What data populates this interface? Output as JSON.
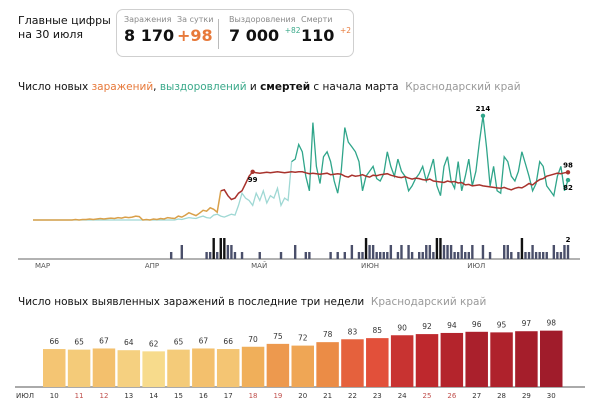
{
  "header": {
    "headline_line1": "Главные цифры",
    "headline_line2": "на 30 июля",
    "stats": {
      "cases_label": "Заражения",
      "cases_value": "8 170",
      "daily_label": "За сутки",
      "daily_value": "+98",
      "recovered_label": "Выздоровления",
      "recovered_value": "7 000",
      "recovered_delta": "+82",
      "deaths_label": "Смерти",
      "deaths_value": "110",
      "deaths_delta": "+2"
    }
  },
  "colors": {
    "cases_early": "#d9a04a",
    "cases": "#a8322c",
    "recovered_early": "#9fd8d4",
    "recovered": "#2fa58a",
    "deaths": "#4a4f6a",
    "deaths_high": "#111111",
    "accent_orange": "#e7793a",
    "accent_green": "#3aa98a"
  },
  "chart_data": [
    {
      "type": "line",
      "title_parts": {
        "a": "Число новых ",
        "cases": "заражений",
        "b": ", ",
        "recovered": "выздоровлений",
        "c": " и ",
        "deaths": "смертей",
        "d": " с начала марта",
        "region": "Краснодарский край"
      },
      "x_start": "2020-03-01",
      "x_end": "2020-07-30",
      "x_ticks": [
        "МАР",
        "АПР",
        "МАЙ",
        "ИЮН",
        "ИЮЛ"
      ],
      "annotations": {
        "cases_peak": "99",
        "recovered_peak": "214",
        "cases_last": "98",
        "recovered_last": "82",
        "deaths_last": "2"
      },
      "series": [
        {
          "key": "cases",
          "values": [
            0,
            0,
            0,
            0,
            0,
            0,
            0,
            0,
            0,
            0,
            0,
            0,
            1,
            0,
            1,
            1,
            2,
            1,
            2,
            3,
            2,
            3,
            4,
            3,
            5,
            4,
            6,
            5,
            6,
            8,
            7,
            0,
            1,
            0,
            2,
            1,
            3,
            2,
            5,
            4,
            3,
            8,
            6,
            10,
            15,
            12,
            9,
            14,
            20,
            18,
            25,
            22,
            16,
            60,
            62,
            50,
            42,
            45,
            55,
            60,
            75,
            90,
            99,
            97,
            96,
            97,
            98,
            97,
            98,
            99,
            98,
            97,
            98,
            99,
            98,
            99,
            99,
            97,
            95,
            96,
            95,
            94,
            95,
            96,
            93,
            94,
            95,
            94,
            90,
            88,
            92,
            90,
            91,
            93,
            90,
            88,
            92,
            91,
            93,
            94,
            95,
            92,
            90,
            88,
            87,
            89,
            86,
            84,
            86,
            85,
            83,
            82,
            84,
            80,
            79,
            78,
            77,
            80,
            78,
            79,
            76,
            77,
            72,
            73,
            70,
            71,
            72,
            70,
            69,
            68,
            67,
            66,
            65,
            67,
            64,
            62,
            65,
            67,
            66,
            70,
            75,
            72,
            78,
            83,
            85,
            90,
            92,
            94,
            96,
            95,
            97,
            98
          ]
        },
        {
          "key": "recovered",
          "values": [
            0,
            0,
            0,
            0,
            0,
            0,
            0,
            0,
            0,
            0,
            0,
            0,
            0,
            0,
            0,
            0,
            0,
            0,
            0,
            0,
            0,
            0,
            0,
            0,
            0,
            0,
            0,
            0,
            0,
            0,
            0,
            0,
            0,
            0,
            0,
            0,
            0,
            0,
            0,
            0,
            0,
            2,
            1,
            3,
            5,
            4,
            3,
            6,
            8,
            5,
            4,
            10,
            12,
            8,
            6,
            9,
            12,
            10,
            30,
            55,
            45,
            40,
            30,
            55,
            40,
            60,
            35,
            50,
            45,
            65,
            30,
            45,
            40,
            120,
            125,
            155,
            140,
            90,
            60,
            200,
            110,
            75,
            130,
            140,
            120,
            80,
            55,
            100,
            190,
            160,
            150,
            140,
            120,
            60,
            90,
            100,
            110,
            85,
            80,
            95,
            140,
            110,
            90,
            125,
            100,
            90,
            60,
            70,
            85,
            95,
            110,
            80,
            100,
            125,
            70,
            50,
            110,
            130,
            80,
            65,
            120,
            60,
            90,
            125,
            70,
            100,
            160,
            214,
            150,
            70,
            110,
            60,
            55,
            130,
            120,
            90,
            80,
            100,
            140,
            115,
            90,
            60,
            75,
            120,
            110,
            70,
            60,
            50,
            90,
            110,
            60,
            82
          ]
        },
        {
          "key": "deaths",
          "values": [
            0,
            0,
            0,
            0,
            0,
            0,
            0,
            0,
            0,
            0,
            0,
            0,
            0,
            0,
            0,
            0,
            0,
            0,
            0,
            0,
            0,
            0,
            0,
            0,
            0,
            0,
            0,
            0,
            0,
            0,
            0,
            0,
            0,
            0,
            0,
            0,
            0,
            0,
            0,
            1,
            0,
            0,
            2,
            0,
            0,
            0,
            0,
            0,
            0,
            1,
            1,
            3,
            1,
            3,
            3,
            2,
            2,
            1,
            0,
            1,
            0,
            0,
            0,
            0,
            1,
            0,
            0,
            0,
            0,
            0,
            1,
            0,
            0,
            0,
            2,
            0,
            0,
            1,
            1,
            0,
            0,
            0,
            0,
            0,
            1,
            0,
            1,
            0,
            1,
            0,
            2,
            0,
            1,
            1,
            3,
            2,
            2,
            1,
            1,
            1,
            1,
            2,
            0,
            1,
            2,
            0,
            2,
            1,
            0,
            1,
            1,
            2,
            2,
            1,
            3,
            3,
            2,
            2,
            2,
            1,
            1,
            2,
            1,
            1,
            2,
            0,
            0,
            2,
            0,
            1,
            0,
            0,
            0,
            2,
            2,
            1,
            0,
            1,
            3,
            1,
            1,
            2,
            1,
            1,
            1,
            1,
            0,
            2,
            1,
            1,
            2,
            2
          ]
        }
      ]
    },
    {
      "type": "bar",
      "title": "Число новых выявленных заражений в последние три недели",
      "region": "Краснодарский край",
      "month_label": "ИЮЛ",
      "categories": [
        "10",
        "11",
        "12",
        "13",
        "14",
        "15",
        "16",
        "17",
        "18",
        "19",
        "20",
        "21",
        "22",
        "23",
        "24",
        "25",
        "26",
        "27",
        "28",
        "29",
        "30"
      ],
      "weekend": [
        false,
        true,
        true,
        false,
        false,
        false,
        false,
        false,
        true,
        true,
        false,
        false,
        false,
        false,
        false,
        true,
        true,
        false,
        false,
        false,
        false
      ],
      "values": [
        66,
        65,
        67,
        64,
        62,
        65,
        67,
        66,
        70,
        75,
        72,
        78,
        83,
        85,
        90,
        92,
        94,
        96,
        95,
        97,
        98
      ],
      "ylim": [
        0,
        98
      ]
    }
  ]
}
